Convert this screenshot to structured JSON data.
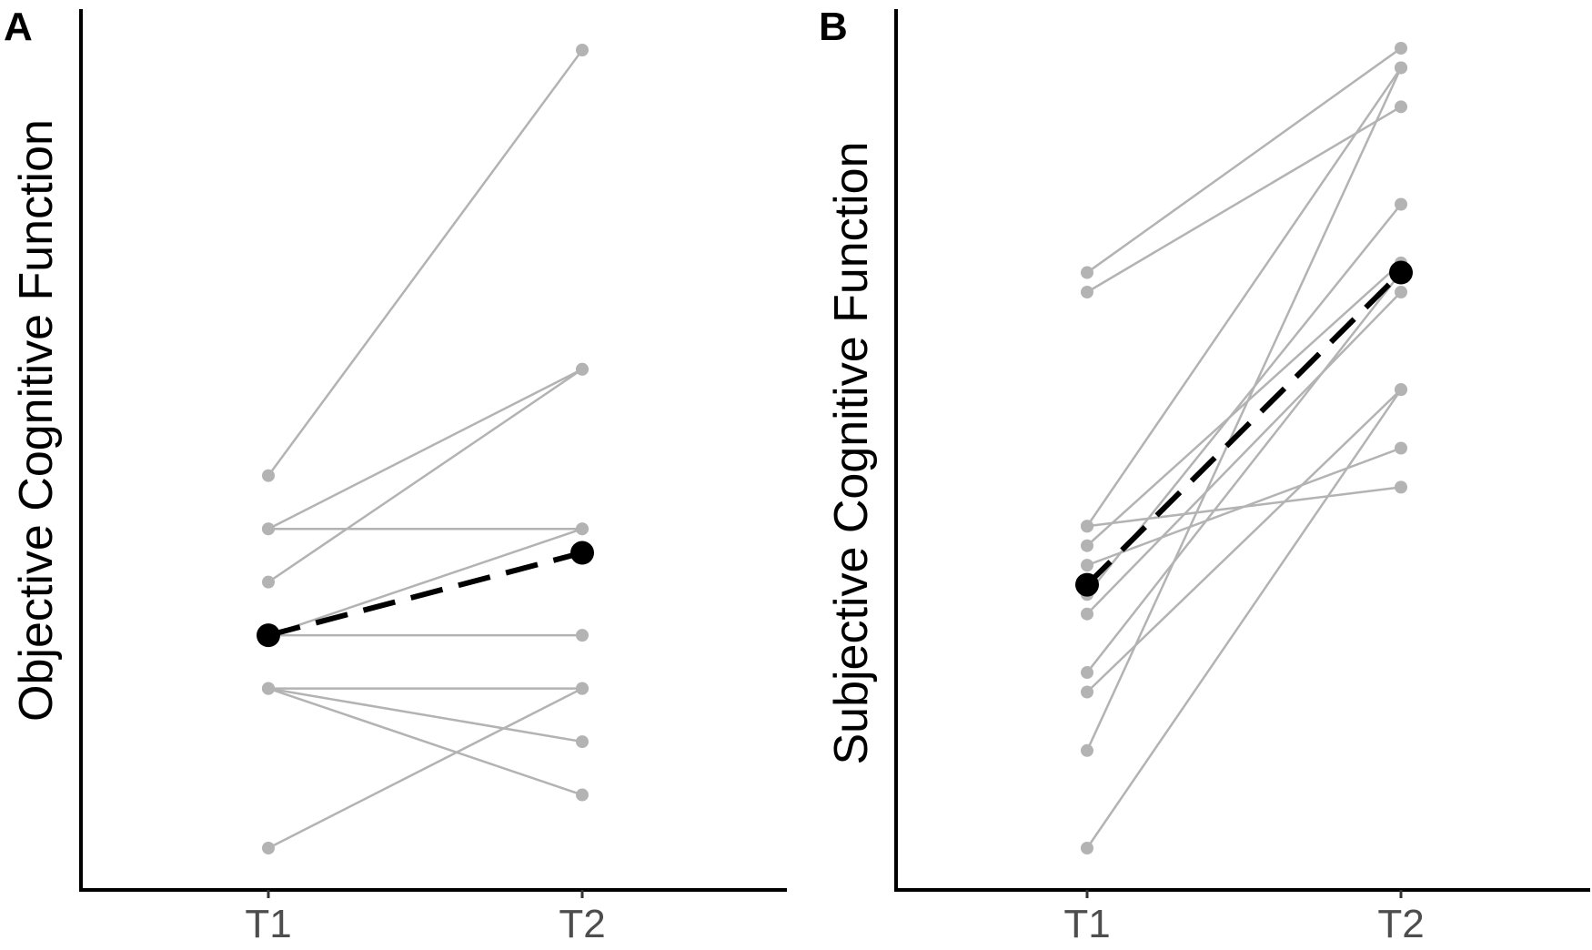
{
  "chart_data": [
    {
      "type": "line",
      "panel": "A",
      "xlabel": "",
      "ylabel": "Objective Cognitive Function",
      "categories": [
        "T1",
        "T2"
      ],
      "individual_color": "#b3b3b3",
      "mean_color": "#000000",
      "mean_style": "dashed",
      "ylim": [
        0,
        15
      ],
      "individuals": [
        {
          "values": [
            7.0,
            15.0
          ]
        },
        {
          "values": [
            6.0,
            9.0
          ]
        },
        {
          "values": [
            5.0,
            9.0
          ]
        },
        {
          "values": [
            6.0,
            6.0
          ]
        },
        {
          "values": [
            4.0,
            6.0
          ]
        },
        {
          "values": [
            4.0,
            4.0
          ]
        },
        {
          "values": [
            3.0,
            3.0
          ]
        },
        {
          "values": [
            3.0,
            2.0
          ]
        },
        {
          "values": [
            3.0,
            1.0
          ]
        },
        {
          "values": [
            0.0,
            3.0
          ]
        }
      ],
      "mean": {
        "values": [
          4.0,
          5.55
        ]
      }
    },
    {
      "type": "line",
      "panel": "B",
      "xlabel": "",
      "ylabel": "Subjective Cognitive Function",
      "categories": [
        "T1",
        "T2"
      ],
      "individual_color": "#b3b3b3",
      "mean_color": "#000000",
      "mean_style": "dashed",
      "ylim": [
        0,
        41
      ],
      "individuals": [
        {
          "values": [
            29.5,
            41.0
          ]
        },
        {
          "values": [
            28.5,
            38.0
          ]
        },
        {
          "values": [
            16.5,
            40.0
          ]
        },
        {
          "values": [
            15.5,
            30.0
          ]
        },
        {
          "values": [
            13.0,
            33.0
          ]
        },
        {
          "values": [
            12.0,
            28.5
          ]
        },
        {
          "values": [
            9.0,
            29.5
          ]
        },
        {
          "values": [
            8.0,
            23.5
          ]
        },
        {
          "values": [
            5.0,
            40.0
          ]
        },
        {
          "values": [
            0.0,
            23.5
          ]
        },
        {
          "values": [
            16.5,
            18.5
          ]
        },
        {
          "values": [
            14.5,
            20.5
          ]
        }
      ],
      "mean": {
        "values": [
          13.5,
          29.5
        ]
      }
    }
  ],
  "panels": {
    "a": {
      "letter": "A",
      "ylabel": "Objective Cognitive Function",
      "ticks": [
        "T1",
        "T2"
      ]
    },
    "b": {
      "letter": "B",
      "ylabel": "Subjective Cognitive Function",
      "ticks": [
        "T1",
        "T2"
      ]
    }
  }
}
